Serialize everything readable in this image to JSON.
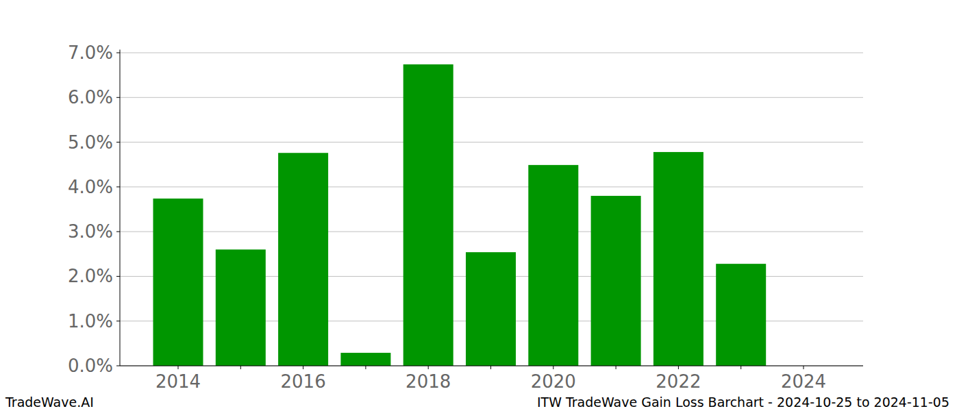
{
  "chart_data": {
    "type": "bar",
    "title": "ITW TradeWave Gain Loss Barchart - 2024-10-25 to 2024-11-05",
    "annotations": [
      "TradeWave.AI"
    ],
    "categories": [
      "2014",
      null,
      "2016",
      null,
      "2018",
      null,
      "2020",
      null,
      "2022",
      null,
      "2024"
    ],
    "values": [
      3.74,
      2.6,
      4.76,
      0.29,
      6.74,
      2.54,
      4.49,
      3.8,
      4.78,
      2.28,
      null
    ],
    "color": "#009600",
    "ylim": [
      0,
      7.07
    ],
    "yticks": [
      {
        "value": 0,
        "label": "0.0%"
      },
      {
        "value": 1,
        "label": "1.0%"
      },
      {
        "value": 2,
        "label": "2.0%"
      },
      {
        "value": 3,
        "label": "3.0%"
      },
      {
        "value": 4,
        "label": "4.0%"
      },
      {
        "value": 5,
        "label": "5.0%"
      },
      {
        "value": 6,
        "label": "6.0%"
      },
      {
        "value": 7,
        "label": "7.0%"
      }
    ],
    "grid": true
  }
}
